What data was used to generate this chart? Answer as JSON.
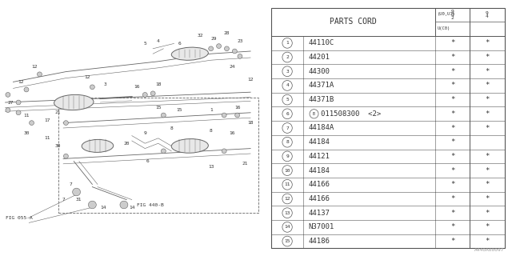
{
  "parts_cord_header": "PARTS CORD",
  "parts": [
    {
      "num": "1",
      "code": "44110C",
      "c1": "*",
      "c2": "*"
    },
    {
      "num": "2",
      "code": "44201",
      "c1": "*",
      "c2": "*"
    },
    {
      "num": "3",
      "code": "44300",
      "c1": "*",
      "c2": "*"
    },
    {
      "num": "4",
      "code": "44371A",
      "c1": "*",
      "c2": "*"
    },
    {
      "num": "5",
      "code": "44371B",
      "c1": "*",
      "c2": "*"
    },
    {
      "num": "6",
      "code": "011508300  <2>",
      "c1": "*",
      "c2": "*",
      "b_circle": true
    },
    {
      "num": "7",
      "code": "44184A",
      "c1": "*",
      "c2": "*"
    },
    {
      "num": "8",
      "code": "44184",
      "c1": "*",
      "c2": ""
    },
    {
      "num": "9",
      "code": "44121",
      "c1": "*",
      "c2": "*"
    },
    {
      "num": "10",
      "code": "44184",
      "c1": "*",
      "c2": "*"
    },
    {
      "num": "11",
      "code": "44166",
      "c1": "*",
      "c2": "*"
    },
    {
      "num": "12",
      "code": "44166",
      "c1": "*",
      "c2": "*"
    },
    {
      "num": "13",
      "code": "44137",
      "c1": "*",
      "c2": "*"
    },
    {
      "num": "14",
      "code": "N37001",
      "c1": "*",
      "c2": "*"
    },
    {
      "num": "15",
      "code": "44186",
      "c1": "*",
      "c2": "*"
    }
  ],
  "header_col3_top": "9",
  "header_col3_mid": "3",
  "header_col3_bot": "2",
  "header_col4_top": "9",
  "header_col4_bot": "4",
  "header_sub3": "(U0,U1)",
  "header_sub4": "U(C0)",
  "watermark": "A440A00097",
  "fig_left": "FIG 055-A",
  "fig_right": "FIG 440-B",
  "bg_color": "#ffffff",
  "line_color": "#555555",
  "text_color": "#333333",
  "table_fs": 6.5,
  "diag_lc": "#666666"
}
